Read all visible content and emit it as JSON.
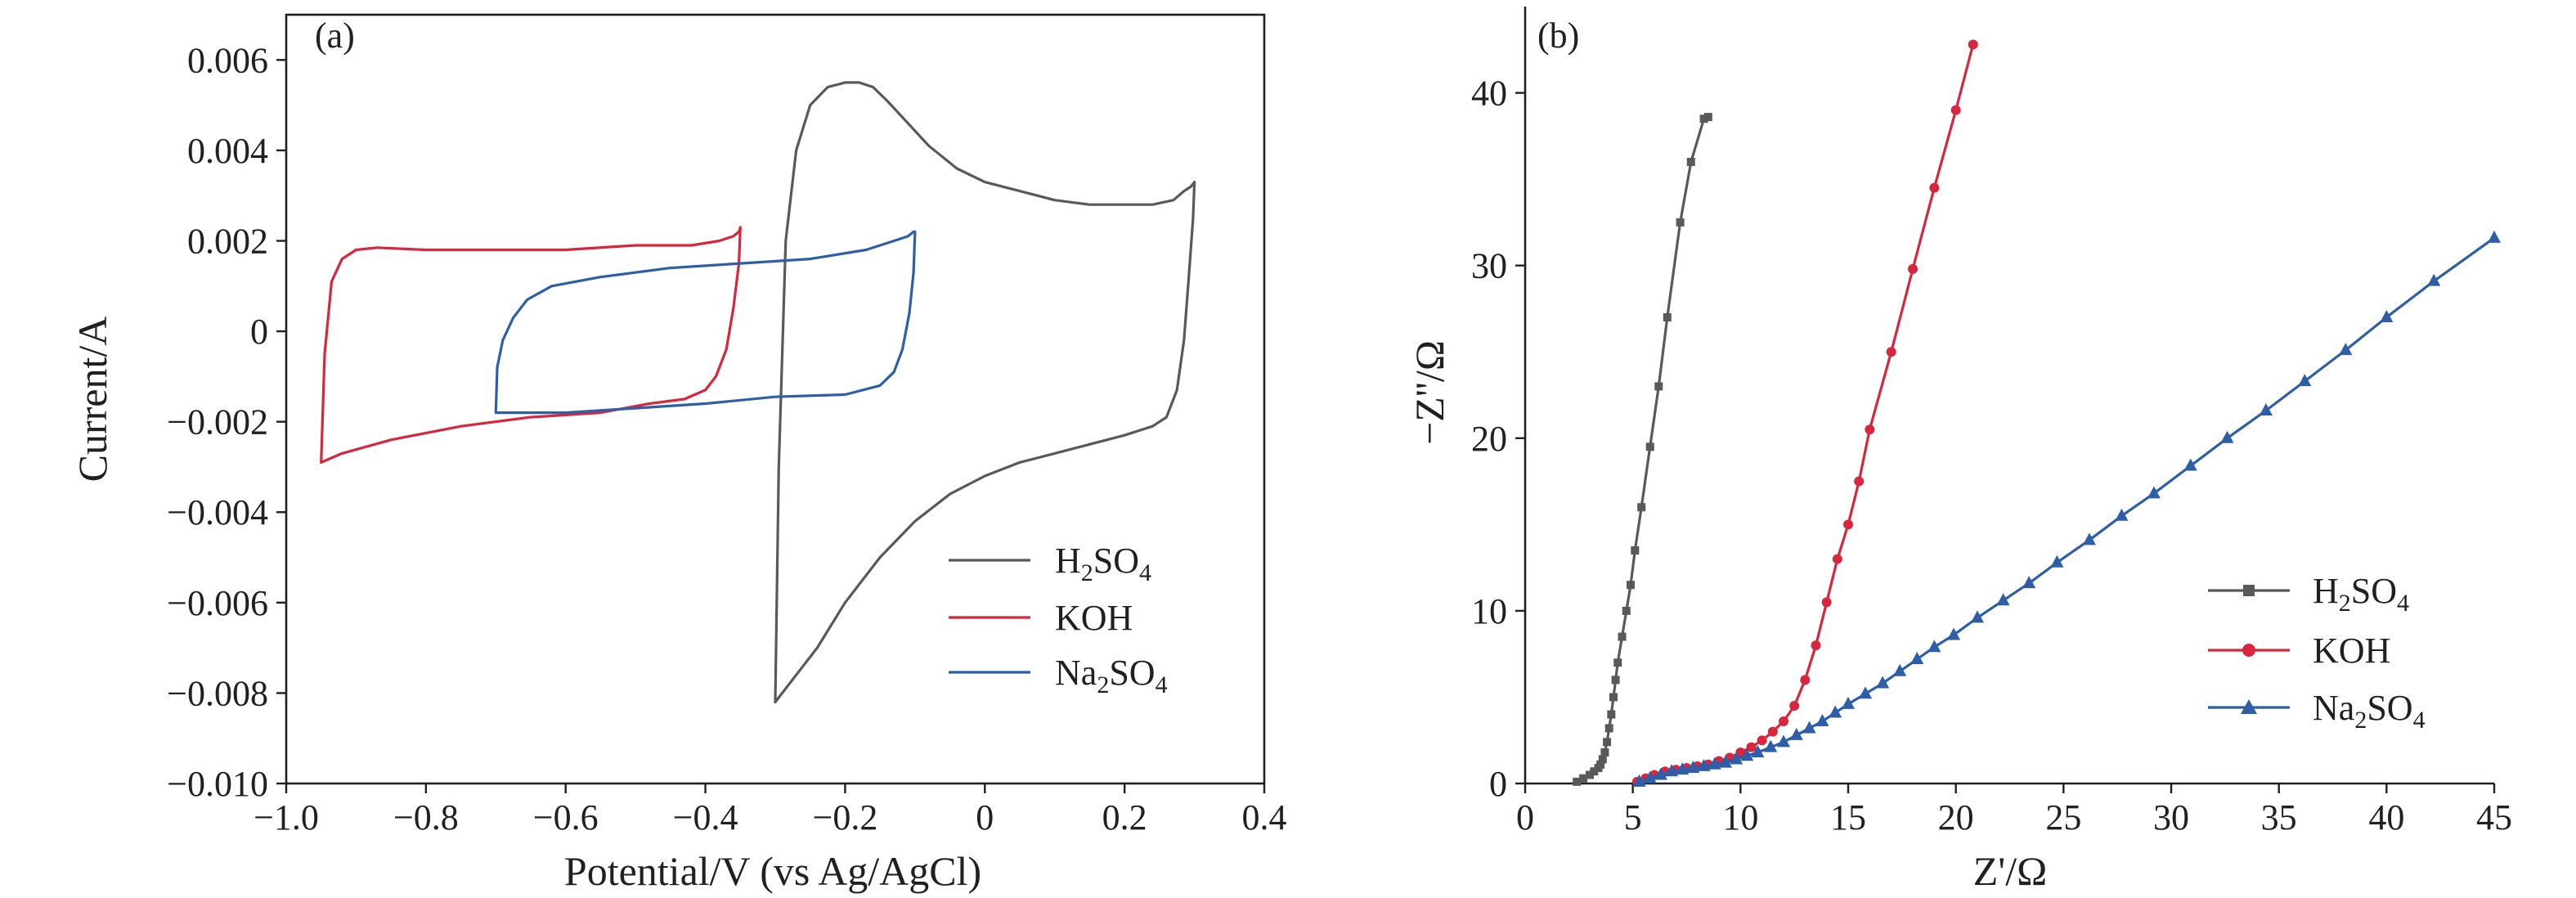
{
  "figure": {
    "panel_a_tag": "(a)",
    "panel_b_tag": "(b)",
    "panel_a_xlabel": "Potential/V (vs Ag/AgCl)",
    "panel_a_ylabel": "Current/A",
    "panel_b_xlabel": "Z'/Ω",
    "panel_b_ylabel": "−Z''/Ω",
    "legend": [
      {
        "base": "H",
        "sub1": "2",
        "mid": "SO",
        "sub2": "4"
      },
      {
        "base": "KOH",
        "sub1": "",
        "mid": "",
        "sub2": ""
      },
      {
        "base": "Na",
        "sub1": "2",
        "mid": "SO",
        "sub2": "4"
      }
    ]
  },
  "chart_data": [
    {
      "type": "line",
      "panel": "(a)",
      "title": "",
      "xlabel": "Potential/V (vs Ag/AgCl)",
      "ylabel": "Current/A",
      "xlim": [
        -1.0,
        0.4
      ],
      "ylim": [
        -0.01,
        0.007
      ],
      "xticks": [
        -1.0,
        -0.8,
        -0.6,
        -0.4,
        -0.2,
        0,
        0.2,
        0.4
      ],
      "xtick_labels": [
        "−1.0",
        "−0.8",
        "−0.6",
        "−0.4",
        "−0.2",
        "0",
        "0.2",
        "0.4"
      ],
      "yticks": [
        0.006,
        0.004,
        0.002,
        0,
        -0.002,
        -0.004,
        -0.006,
        -0.008,
        -0.01
      ],
      "ytick_labels": [
        "0.006",
        "0.004",
        "0.002",
        "0",
        "−0.002",
        "−0.004",
        "−0.006",
        "−0.008",
        "−0.010"
      ],
      "grid": false,
      "legend_position": "bottom-right",
      "series": [
        {
          "name": "H2SO4",
          "color": "#58595b",
          "x": [
            -0.3,
            -0.295,
            -0.285,
            -0.27,
            -0.25,
            -0.225,
            -0.2,
            -0.18,
            -0.16,
            -0.14,
            -0.11,
            -0.08,
            -0.04,
            0,
            0.05,
            0.1,
            0.15,
            0.2,
            0.24,
            0.27,
            0.285,
            0.295,
            0.3,
            0.298,
            0.292,
            0.285,
            0.275,
            0.26,
            0.24,
            0.2,
            0.15,
            0.1,
            0.05,
            0,
            -0.05,
            -0.1,
            -0.15,
            -0.2,
            -0.24,
            -0.27,
            -0.29,
            -0.3,
            -0.3
          ],
          "y": [
            -0.0082,
            -0.003,
            0.002,
            0.004,
            0.005,
            0.0054,
            0.0055,
            0.0055,
            0.0054,
            0.0051,
            0.0046,
            0.0041,
            0.0036,
            0.0033,
            0.0031,
            0.0029,
            0.0028,
            0.0028,
            0.0028,
            0.0029,
            0.0031,
            0.0032,
            0.0033,
            0.0025,
            0.0012,
            -0.0002,
            -0.0013,
            -0.0019,
            -0.0021,
            -0.0023,
            -0.0025,
            -0.0027,
            -0.0029,
            -0.0032,
            -0.0036,
            -0.0042,
            -0.005,
            -0.006,
            -0.007,
            -0.0076,
            -0.008,
            -0.0082,
            -0.0082
          ]
        },
        {
          "name": "KOH",
          "color": "#d7263d",
          "x": [
            -0.95,
            -0.945,
            -0.935,
            -0.92,
            -0.9,
            -0.87,
            -0.8,
            -0.7,
            -0.6,
            -0.5,
            -0.42,
            -0.38,
            -0.36,
            -0.352,
            -0.35,
            -0.352,
            -0.36,
            -0.37,
            -0.385,
            -0.4,
            -0.43,
            -0.48,
            -0.55,
            -0.65,
            -0.75,
            -0.85,
            -0.92,
            -0.95
          ],
          "y": [
            -0.0029,
            -0.0005,
            0.0011,
            0.0016,
            0.0018,
            0.00185,
            0.0018,
            0.0018,
            0.0018,
            0.0019,
            0.0019,
            0.002,
            0.0021,
            0.0022,
            0.0023,
            0.0015,
            0.0005,
            -0.0004,
            -0.001,
            -0.0013,
            -0.0015,
            -0.0016,
            -0.0018,
            -0.0019,
            -0.0021,
            -0.0024,
            -0.0027,
            -0.0029
          ]
        },
        {
          "name": "Na2SO4",
          "color": "#2f5ea8",
          "x": [
            -0.7,
            -0.698,
            -0.69,
            -0.675,
            -0.655,
            -0.62,
            -0.55,
            -0.45,
            -0.35,
            -0.25,
            -0.17,
            -0.13,
            -0.11,
            -0.102,
            -0.1,
            -0.102,
            -0.108,
            -0.118,
            -0.13,
            -0.15,
            -0.2,
            -0.3,
            -0.4,
            -0.5,
            -0.6,
            -0.66,
            -0.7
          ],
          "y": [
            -0.0018,
            -0.0008,
            -0.0002,
            0.0003,
            0.0007,
            0.001,
            0.0012,
            0.0014,
            0.0015,
            0.0016,
            0.0018,
            0.002,
            0.0021,
            0.0022,
            0.0022,
            0.0013,
            0.0004,
            -0.0004,
            -0.0009,
            -0.0012,
            -0.0014,
            -0.00145,
            -0.0016,
            -0.0017,
            -0.0018,
            -0.0018,
            -0.0018
          ]
        }
      ]
    },
    {
      "type": "line",
      "panel": "(b)",
      "title": "",
      "xlabel": "Z'/Ω",
      "ylabel": "−Z''/Ω",
      "xlim": [
        0,
        45
      ],
      "ylim": [
        0,
        45
      ],
      "xticks": [
        0,
        5,
        10,
        15,
        20,
        25,
        30,
        35,
        40,
        45
      ],
      "xtick_labels": [
        "0",
        "5",
        "10",
        "15",
        "20",
        "25",
        "30",
        "35",
        "40",
        "45"
      ],
      "yticks": [
        0,
        10,
        20,
        30,
        40
      ],
      "ytick_labels": [
        "0",
        "10",
        "20",
        "30",
        "40"
      ],
      "grid": false,
      "legend_position": "bottom-right",
      "series": [
        {
          "name": "H2SO4",
          "color": "#58595b",
          "marker": "square",
          "x": [
            2.4,
            2.7,
            3.0,
            3.2,
            3.4,
            3.5,
            3.6,
            3.7,
            3.8,
            3.9,
            4.0,
            4.1,
            4.2,
            4.3,
            4.5,
            4.7,
            4.9,
            5.1,
            5.4,
            5.8,
            6.2,
            6.6,
            7.2,
            7.7,
            8.3,
            8.5
          ],
          "y": [
            0.1,
            0.3,
            0.5,
            0.7,
            0.9,
            1.1,
            1.4,
            1.8,
            2.4,
            3.2,
            4.0,
            5.0,
            6.0,
            7.0,
            8.5,
            10.0,
            11.5,
            13.5,
            16.0,
            19.5,
            23.0,
            27.0,
            32.5,
            36.0,
            38.5,
            38.6
          ]
        },
        {
          "name": "KOH",
          "color": "#d7263d",
          "marker": "circle",
          "x": [
            5.2,
            5.6,
            6.0,
            6.5,
            7.0,
            7.5,
            8.0,
            8.5,
            9.0,
            9.5,
            10.0,
            10.5,
            11.0,
            11.5,
            12.0,
            12.5,
            13.0,
            13.5,
            14.0,
            14.5,
            15.0,
            15.5,
            16.0,
            17.0,
            18.0,
            19.0,
            20.0,
            20.8
          ],
          "y": [
            0.1,
            0.3,
            0.5,
            0.7,
            0.8,
            0.9,
            1.0,
            1.1,
            1.3,
            1.5,
            1.8,
            2.1,
            2.5,
            3.0,
            3.6,
            4.5,
            6.0,
            8.0,
            10.5,
            13.0,
            15.0,
            17.5,
            20.5,
            25.0,
            29.8,
            34.5,
            39.0,
            42.8
          ]
        },
        {
          "name": "Na2SO4",
          "color": "#2f5ea8",
          "marker": "triangle",
          "x": [
            5.3,
            5.8,
            6.3,
            6.8,
            7.3,
            7.8,
            8.3,
            8.8,
            9.3,
            9.8,
            10.3,
            10.8,
            11.4,
            12.0,
            12.6,
            13.2,
            13.8,
            14.4,
            15.0,
            15.8,
            16.6,
            17.4,
            18.2,
            19.0,
            19.9,
            21.0,
            22.2,
            23.4,
            24.7,
            26.2,
            27.7,
            29.2,
            30.9,
            32.6,
            34.4,
            36.2,
            38.1,
            40.0,
            42.2,
            45.0
          ],
          "y": [
            0.1,
            0.3,
            0.5,
            0.7,
            0.8,
            0.9,
            1.0,
            1.1,
            1.2,
            1.4,
            1.6,
            1.8,
            2.1,
            2.4,
            2.8,
            3.2,
            3.6,
            4.1,
            4.6,
            5.2,
            5.8,
            6.5,
            7.2,
            7.9,
            8.6,
            9.6,
            10.6,
            11.6,
            12.8,
            14.1,
            15.5,
            16.8,
            18.4,
            20.0,
            21.6,
            23.3,
            25.1,
            27.0,
            29.1,
            31.6
          ]
        }
      ]
    }
  ]
}
